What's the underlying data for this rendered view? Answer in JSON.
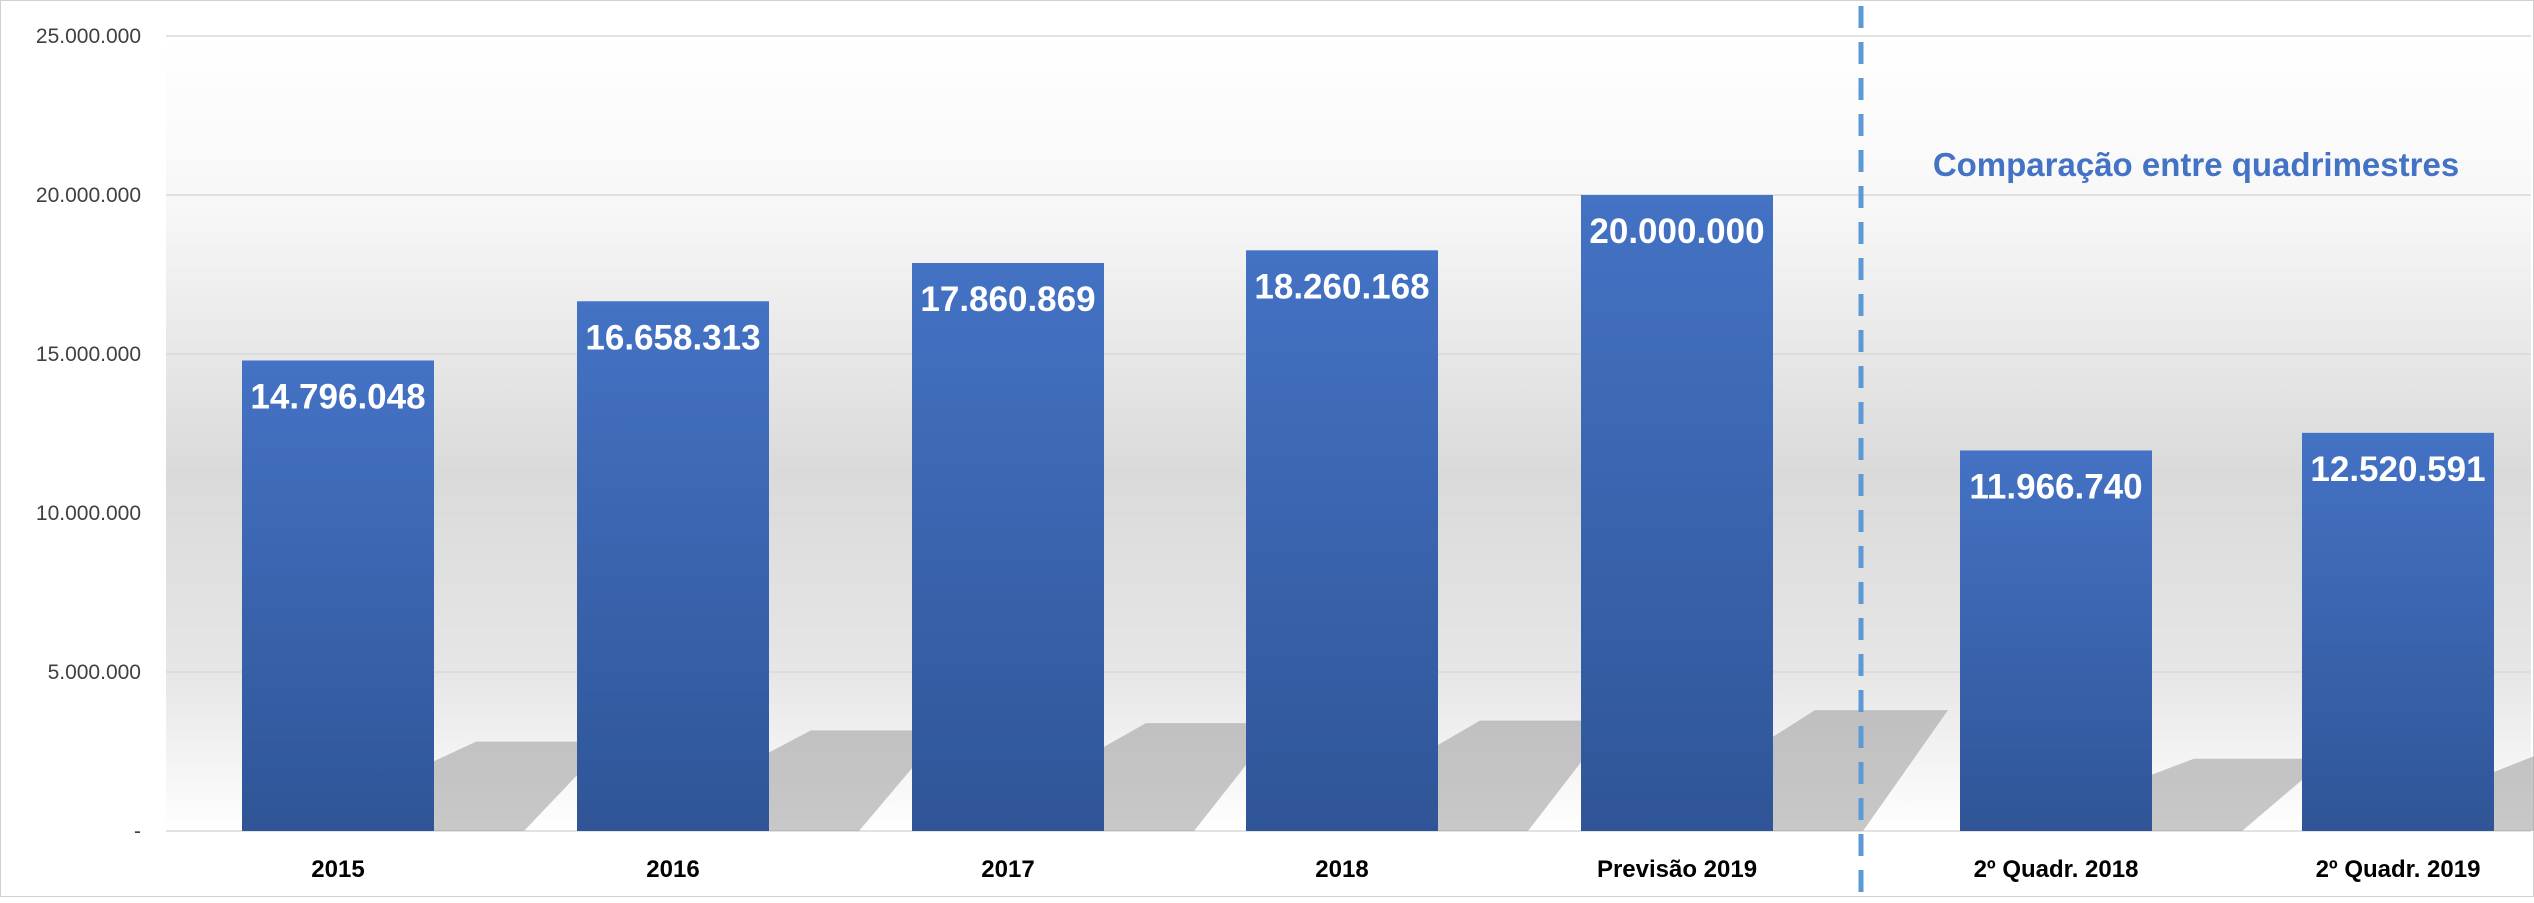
{
  "chart_data": {
    "type": "bar",
    "title": "",
    "xlabel": "",
    "ylabel": "",
    "categories": [
      "2015",
      "2016",
      "2017",
      "2018",
      "Previsão 2019",
      "2º Quadr. 2018",
      "2º Quadr. 2019"
    ],
    "values": [
      14796048,
      16658313,
      17860869,
      18260168,
      20000000,
      11966740,
      12520591
    ],
    "data_labels": [
      "14.796.048",
      "16.658.313",
      "17.860.869",
      "18.260.168",
      "20.000.000",
      "11.966.740",
      "12.520.591"
    ],
    "ylim": [
      0,
      25000000
    ],
    "yticks": [
      0,
      5000000,
      10000000,
      15000000,
      20000000,
      25000000
    ],
    "ytick_labels": [
      "-",
      "5.000.000",
      "10.000.000",
      "15.000.000",
      "20.000.000",
      "25.000.000"
    ],
    "grid": true,
    "legend": "none",
    "annotation": "Comparação entre quadrimestres",
    "colors": {
      "bar": "#4472c4",
      "bar_dark": "#2f5597",
      "annotation": "#4472c4",
      "divider": "#5b9bd5",
      "grid": "#d9d9d9",
      "label": "#ffffff",
      "axis_text": "#404040"
    }
  }
}
